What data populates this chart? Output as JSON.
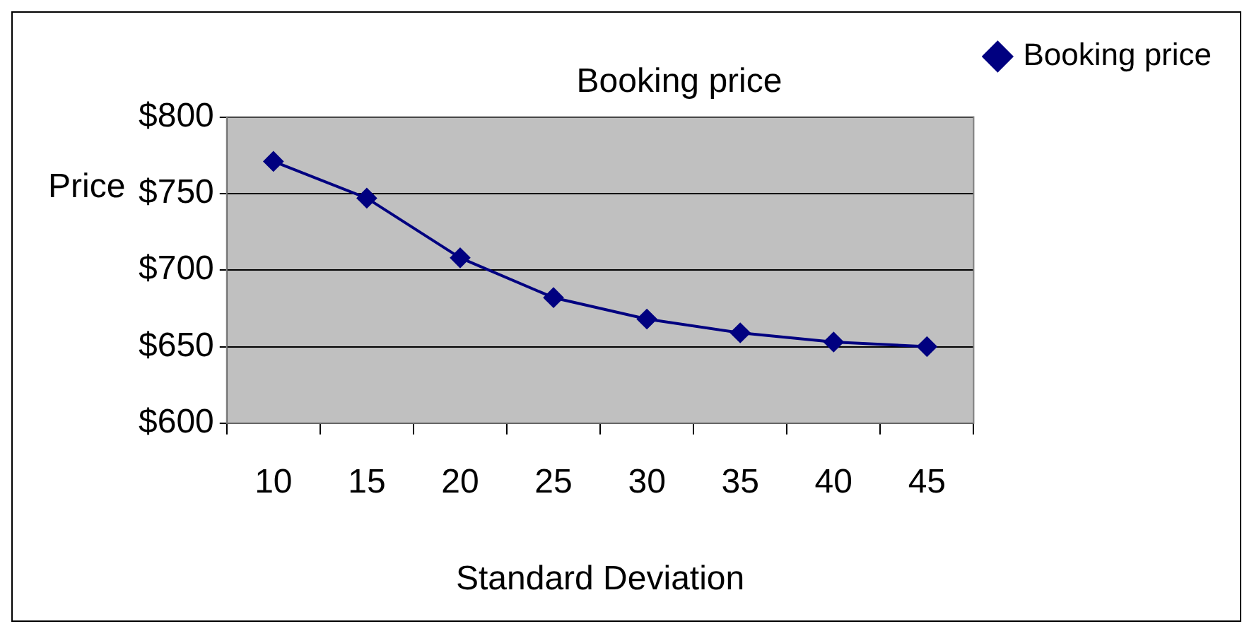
{
  "chart_data": {
    "type": "line",
    "title": "Booking price",
    "xlabel": "Standard Deviation",
    "ylabel": "Price",
    "categories": [
      "10",
      "15",
      "20",
      "25",
      "30",
      "35",
      "40",
      "45"
    ],
    "series": [
      {
        "name": "Booking price",
        "color": "#000080",
        "values": [
          771,
          747,
          708,
          682,
          668,
          659,
          653,
          650
        ]
      }
    ],
    "ylim": [
      600,
      800
    ],
    "yticks": [
      {
        "value": 600,
        "label": "$600"
      },
      {
        "value": 650,
        "label": "$650"
      },
      {
        "value": 700,
        "label": "$700"
      },
      {
        "value": 750,
        "label": "$750"
      },
      {
        "value": 800,
        "label": "$800"
      }
    ],
    "grid": "y",
    "legend": "right",
    "marker": "diamond",
    "line_style": "solid"
  }
}
